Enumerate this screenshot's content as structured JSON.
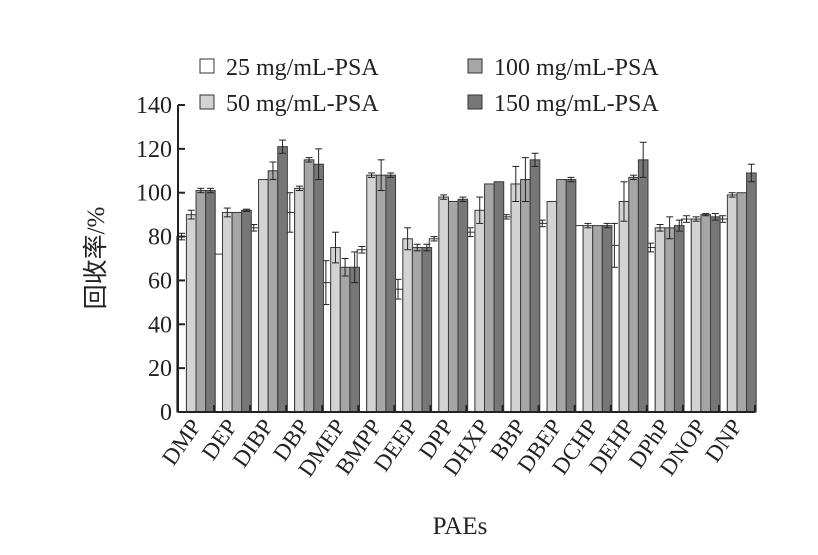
{
  "chart_data": {
    "type": "bar",
    "title": "",
    "xlabel": "PAEs",
    "ylabel": "回收率/%",
    "ylim": [
      0,
      140
    ],
    "yticks": [
      0,
      20,
      40,
      60,
      80,
      100,
      120,
      140
    ],
    "grid": false,
    "legend_position": "top",
    "categories": [
      "DMP",
      "DEP",
      "DIBP",
      "DBP",
      "DMEP",
      "BMPP",
      "DEEP",
      "DPP",
      "DHXP",
      "BBP",
      "DBEP",
      "DCHP",
      "DEHP",
      "DPhP",
      "DNOP",
      "DNP"
    ],
    "series": [
      {
        "name": "25 mg/mL-PSA",
        "color": "#ffffff",
        "values": [
          80,
          72,
          84,
          91,
          59,
          74,
          56,
          79,
          82,
          89,
          86,
          85,
          76,
          75,
          88,
          88
        ],
        "errors": [
          1.5,
          0,
          1.5,
          9,
          10,
          1.5,
          4.5,
          1,
          2,
          1,
          1.5,
          0,
          10,
          2,
          1.5,
          1.5
        ]
      },
      {
        "name": "50 mg/mL-PSA",
        "color": "#d3d3d3",
        "values": [
          90,
          91,
          106,
          102,
          75,
          108,
          79,
          98,
          92,
          104,
          96,
          85,
          96,
          84,
          88,
          99
        ],
        "errors": [
          2,
          2,
          0,
          1,
          7,
          1,
          5,
          1,
          6,
          8,
          0,
          1,
          9,
          1.5,
          1,
          1
        ]
      },
      {
        "name": "100 mg/mL-PSA",
        "color": "#a6a6a6",
        "values": [
          101,
          91,
          110,
          115,
          66,
          108,
          75,
          96,
          104,
          106,
          106,
          85,
          107,
          84,
          90,
          100
        ],
        "errors": [
          1,
          0,
          4,
          1,
          4,
          7,
          1.5,
          0,
          0,
          10,
          0,
          0,
          1,
          5,
          0.5,
          0
        ]
      },
      {
        "name": "150 mg/mL-PSA",
        "color": "#777777",
        "values": [
          101,
          92,
          121,
          113,
          66,
          108,
          75,
          97,
          105,
          115,
          106,
          85,
          115,
          85,
          89,
          109
        ],
        "errors": [
          1,
          0.5,
          3,
          7,
          7,
          1,
          1.5,
          1,
          0,
          3,
          1,
          1,
          8,
          2.5,
          1.5,
          4
        ]
      }
    ]
  }
}
